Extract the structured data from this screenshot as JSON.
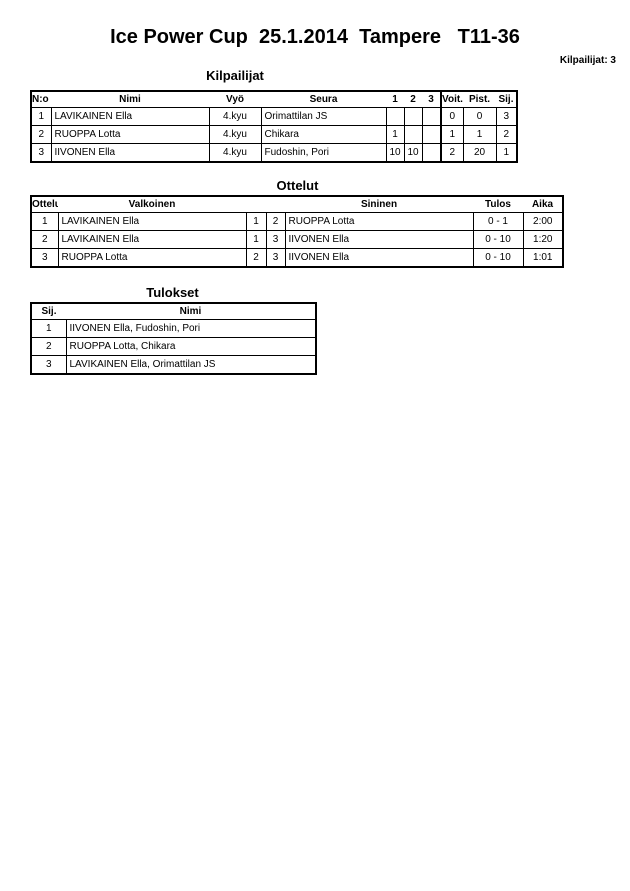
{
  "title": "Ice Power Cup  25.1.2014  Tampere   T11-36",
  "competitor_count": "Kilpailijat: 3",
  "competitors": {
    "heading": "Kilpailijat",
    "headers": [
      "N:o",
      "Nimi",
      "Vyö",
      "Seura",
      "1",
      "2",
      "3",
      "Voit.",
      "Pist.",
      "Sij."
    ],
    "rows": [
      [
        "1",
        "LAVIKAINEN Ella",
        "4.kyu",
        "Orimattilan JS",
        "",
        "",
        "",
        "0",
        "0",
        "3"
      ],
      [
        "2",
        "RUOPPA Lotta",
        "4.kyu",
        "Chikara",
        "1",
        "",
        "",
        "1",
        "1",
        "2"
      ],
      [
        "3",
        "IIVONEN Ella",
        "4.kyu",
        "Fudoshin, Pori",
        "10",
        "10",
        "",
        "2",
        "20",
        "1"
      ]
    ]
  },
  "matches": {
    "heading": "Ottelut",
    "headers": [
      "Ottelu",
      "Valkoinen",
      "Sininen",
      "Tulos",
      "Aika"
    ],
    "rows": [
      [
        "1",
        "LAVIKAINEN Ella",
        "1",
        "2",
        "RUOPPA Lotta",
        "0 - 1",
        "2:00"
      ],
      [
        "2",
        "LAVIKAINEN Ella",
        "1",
        "3",
        "IIVONEN Ella",
        "0 - 10",
        "1:20"
      ],
      [
        "3",
        "RUOPPA Lotta",
        "2",
        "3",
        "IIVONEN Ella",
        "0 - 10",
        "1:01"
      ]
    ]
  },
  "results": {
    "heading": "Tulokset",
    "headers": [
      "Sij.",
      "Nimi"
    ],
    "rows": [
      [
        "1",
        "IIVONEN Ella, Fudoshin, Pori"
      ],
      [
        "2",
        "RUOPPA Lotta, Chikara"
      ],
      [
        "3",
        "LAVIKAINEN Ella, Orimattilan JS"
      ]
    ]
  }
}
